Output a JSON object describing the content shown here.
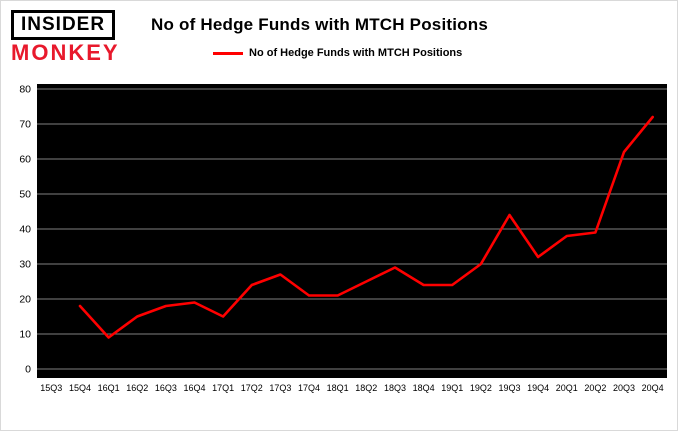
{
  "header": {
    "logo": {
      "line1": "INSIDER",
      "line2": "MONKEY"
    },
    "title": "No of Hedge Funds with MTCH Positions"
  },
  "legend": {
    "label": "No of Hedge Funds with MTCH Positions",
    "color": "#ff0000"
  },
  "colors": {
    "logo_red": "#e8192c",
    "plot_bg": "#000000",
    "grid": "#7f7f7f",
    "axis_text": "#000000",
    "line": "#ff0000"
  },
  "chart_data": {
    "type": "line",
    "title": "No of Hedge Funds with MTCH Positions",
    "categories": [
      "15Q3",
      "15Q4",
      "16Q1",
      "16Q2",
      "16Q3",
      "16Q4",
      "17Q1",
      "17Q2",
      "17Q3",
      "17Q4",
      "18Q1",
      "18Q2",
      "18Q3",
      "18Q4",
      "19Q1",
      "19Q2",
      "19Q3",
      "19Q4",
      "20Q1",
      "20Q2",
      "20Q3",
      "20Q4"
    ],
    "series": [
      {
        "name": "No of Hedge Funds with MTCH Positions",
        "color": "#ff0000",
        "values": [
          null,
          18,
          9,
          15,
          18,
          19,
          15,
          24,
          27,
          21,
          21,
          25,
          29,
          24,
          24,
          30,
          44,
          32,
          38,
          39,
          62,
          72
        ]
      }
    ],
    "xlabel": "",
    "ylabel": "",
    "ylim": [
      0,
      80
    ],
    "ytick_step": 10,
    "grid": true,
    "legend_position": "top"
  }
}
